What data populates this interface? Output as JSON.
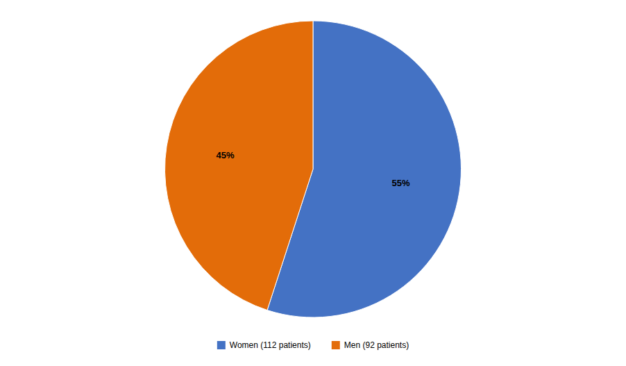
{
  "chart_data": {
    "type": "pie",
    "categories": [
      "Women (112 patients)",
      "Men (92 patients)"
    ],
    "values": [
      55,
      45
    ],
    "value_labels": [
      "55%",
      "45%"
    ],
    "colors": [
      "#4472C4",
      "#E36C09"
    ],
    "data_labels": true,
    "legend": "bottom"
  }
}
